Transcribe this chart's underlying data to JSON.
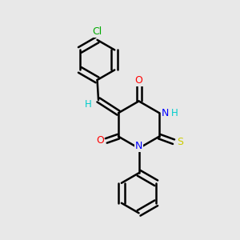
{
  "background_color": "#e8e8e8",
  "bond_color": "#000000",
  "line_width": 1.8,
  "atom_colors": {
    "C": "#000000",
    "H": "#00cccc",
    "N": "#0000ff",
    "O": "#ff0000",
    "S": "#cccc00",
    "Cl": "#00aa00"
  },
  "font_size": 9,
  "figsize": [
    3.0,
    3.0
  ],
  "dpi": 100
}
